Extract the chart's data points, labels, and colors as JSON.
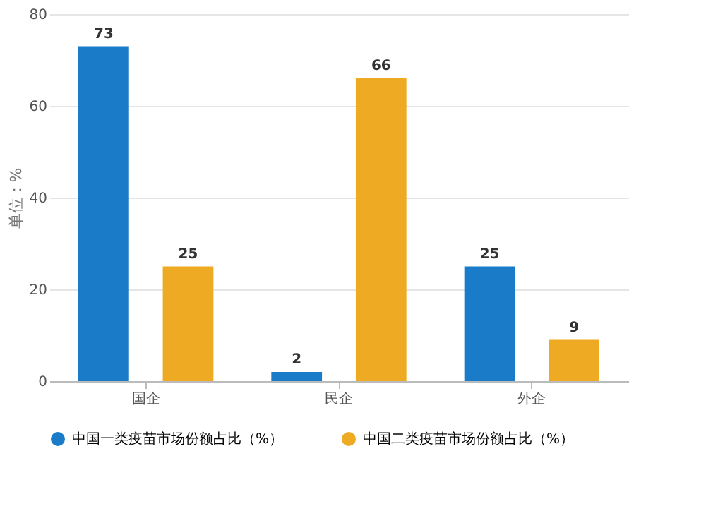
{
  "chart_data": {
    "type": "bar",
    "ylabel": "单位：%",
    "categories": [
      "国企",
      "民企",
      "外企"
    ],
    "series": [
      {
        "name": "中国一类疫苗市场份额占比（%）",
        "color": "#1a7cc8",
        "values": [
          73,
          2,
          25
        ]
      },
      {
        "name": "中国二类疫苗市场份额占比（%）",
        "color": "#eeaa22",
        "values": [
          25,
          66,
          9
        ]
      }
    ],
    "ylim": [
      0,
      80
    ],
    "yticks": [
      0,
      20,
      40,
      60,
      80
    ],
    "grid": "y",
    "legend": "bottom",
    "data_labels": true
  }
}
